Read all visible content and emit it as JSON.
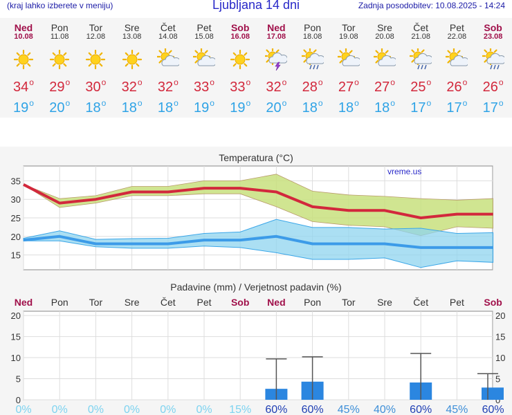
{
  "header": {
    "hint": "(kraj lahko izberete v meniju)",
    "title": "Ljubljana 14 dni",
    "updated": "Zadnja posodobitev: 10.08.2025 - 14:24"
  },
  "days": [
    {
      "name": "Ned",
      "date": "10.08",
      "weekend": true,
      "icon": "sunny-icon",
      "tmax": "34",
      "tmin": "19",
      "precip_prob": "0%"
    },
    {
      "name": "Pon",
      "date": "11.08",
      "weekend": false,
      "icon": "sunny-icon",
      "tmax": "29",
      "tmin": "20",
      "precip_prob": "0%"
    },
    {
      "name": "Tor",
      "date": "12.08",
      "weekend": false,
      "icon": "sunny-icon",
      "tmax": "30",
      "tmin": "18",
      "precip_prob": "0%"
    },
    {
      "name": "Sre",
      "date": "13.08",
      "weekend": false,
      "icon": "sunny-icon",
      "tmax": "32",
      "tmin": "18",
      "precip_prob": "0%"
    },
    {
      "name": "Čet",
      "date": "14.08",
      "weekend": false,
      "icon": "partly-cloudy-icon",
      "tmax": "32",
      "tmin": "18",
      "precip_prob": "0%"
    },
    {
      "name": "Pet",
      "date": "15.08",
      "weekend": false,
      "icon": "partly-cloudy-icon",
      "tmax": "33",
      "tmin": "19",
      "precip_prob": "0%"
    },
    {
      "name": "Sob",
      "date": "16.08",
      "weekend": true,
      "icon": "sunny-icon",
      "tmax": "33",
      "tmin": "19",
      "precip_prob": "15%"
    },
    {
      "name": "Ned",
      "date": "17.08",
      "weekend": true,
      "icon": "thunderstorm-icon",
      "tmax": "32",
      "tmin": "20",
      "precip_prob": "60%"
    },
    {
      "name": "Pon",
      "date": "18.08",
      "weekend": false,
      "icon": "sun-rain-icon",
      "tmax": "28",
      "tmin": "18",
      "precip_prob": "60%"
    },
    {
      "name": "Tor",
      "date": "19.08",
      "weekend": false,
      "icon": "partly-cloudy-icon",
      "tmax": "27",
      "tmin": "18",
      "precip_prob": "45%"
    },
    {
      "name": "Sre",
      "date": "20.08",
      "weekend": false,
      "icon": "partly-cloudy-icon",
      "tmax": "27",
      "tmin": "18",
      "precip_prob": "40%"
    },
    {
      "name": "Čet",
      "date": "21.08",
      "weekend": false,
      "icon": "sun-rain-icon",
      "tmax": "25",
      "tmin": "17",
      "precip_prob": "60%"
    },
    {
      "name": "Pet",
      "date": "22.08",
      "weekend": false,
      "icon": "partly-cloudy-icon",
      "tmax": "26",
      "tmin": "17",
      "precip_prob": "45%"
    },
    {
      "name": "Sob",
      "date": "23.08",
      "weekend": true,
      "icon": "sun-rain-icon",
      "tmax": "26",
      "tmin": "17",
      "precip_prob": "60%"
    }
  ],
  "chart_data": [
    {
      "type": "line",
      "title": "Temperatura (°C)",
      "watermark": "vreme.us",
      "ylim": [
        11,
        39
      ],
      "yticks": [
        15,
        20,
        25,
        30,
        35
      ],
      "grid": true,
      "x": [
        "10.08",
        "11.08",
        "12.08",
        "13.08",
        "14.08",
        "15.08",
        "16.08",
        "17.08",
        "18.08",
        "19.08",
        "20.08",
        "21.08",
        "22.08",
        "23.08"
      ],
      "series": [
        {
          "role": "max",
          "color": "#d2283c",
          "values": [
            34,
            29,
            30,
            32,
            32,
            33,
            33,
            32,
            28,
            27,
            27,
            25,
            26,
            26
          ]
        },
        {
          "role": "max-band",
          "color": "#c8e07e",
          "upper": [
            34,
            30.2,
            31,
            33.5,
            33.5,
            35,
            35,
            36.8,
            32.2,
            31.2,
            30.8,
            30.2,
            29.8,
            30.2
          ],
          "lower": [
            34,
            27.8,
            29,
            31,
            31,
            31.5,
            31.5,
            28,
            24,
            23,
            22.6,
            20.2,
            22.6,
            22.2
          ]
        },
        {
          "role": "min",
          "color": "#3c9be8",
          "values": [
            19,
            20,
            18,
            18,
            18,
            19,
            19,
            20,
            18,
            18,
            18,
            17,
            17,
            17
          ]
        },
        {
          "role": "min-band",
          "color": "#8fd4ef",
          "upper": [
            19.5,
            21.5,
            19.2,
            19.4,
            19.5,
            20.8,
            21.2,
            24.6,
            22.4,
            22.4,
            22,
            22.2,
            20.8,
            21
          ],
          "lower": [
            18.8,
            18.8,
            17.2,
            16.8,
            16.8,
            17.4,
            17,
            15.6,
            13.8,
            13.8,
            14.2,
            11.6,
            13.4,
            13
          ]
        }
      ]
    },
    {
      "type": "bar",
      "title": "Padavine (mm) / Verjetnost padavin (%)",
      "ylim": [
        0,
        21
      ],
      "yticks": [
        0,
        5,
        10,
        15,
        20
      ],
      "grid": true,
      "categories": [
        "Ned",
        "Pon",
        "Tor",
        "Sre",
        "Čet",
        "Pet",
        "Sob",
        "Ned",
        "Pon",
        "Tor",
        "Sre",
        "Čet",
        "Pet",
        "Sob"
      ],
      "weekend": [
        true,
        false,
        false,
        false,
        false,
        false,
        true,
        true,
        false,
        false,
        false,
        false,
        false,
        true
      ],
      "values": [
        0,
        0,
        0,
        0,
        0,
        0,
        0,
        2.6,
        4.3,
        0,
        0,
        4.1,
        0,
        2.9
      ],
      "error_upper": [
        0,
        0,
        0,
        0,
        0,
        0,
        0,
        9.7,
        10.2,
        0,
        0,
        11,
        0,
        6.2
      ],
      "probability": [
        "0%",
        "0%",
        "0%",
        "0%",
        "0%",
        "0%",
        "15%",
        "60%",
        "60%",
        "45%",
        "40%",
        "60%",
        "45%",
        "60%"
      ],
      "bar_color": "#2b86e0"
    }
  ],
  "colors": {
    "max": "#d2283c",
    "min": "#2fa3e6",
    "weekend": "#a0104a",
    "title": "#2828c8",
    "prob_low": "#7dd3f0",
    "prob_high": "#1f3fb4"
  }
}
